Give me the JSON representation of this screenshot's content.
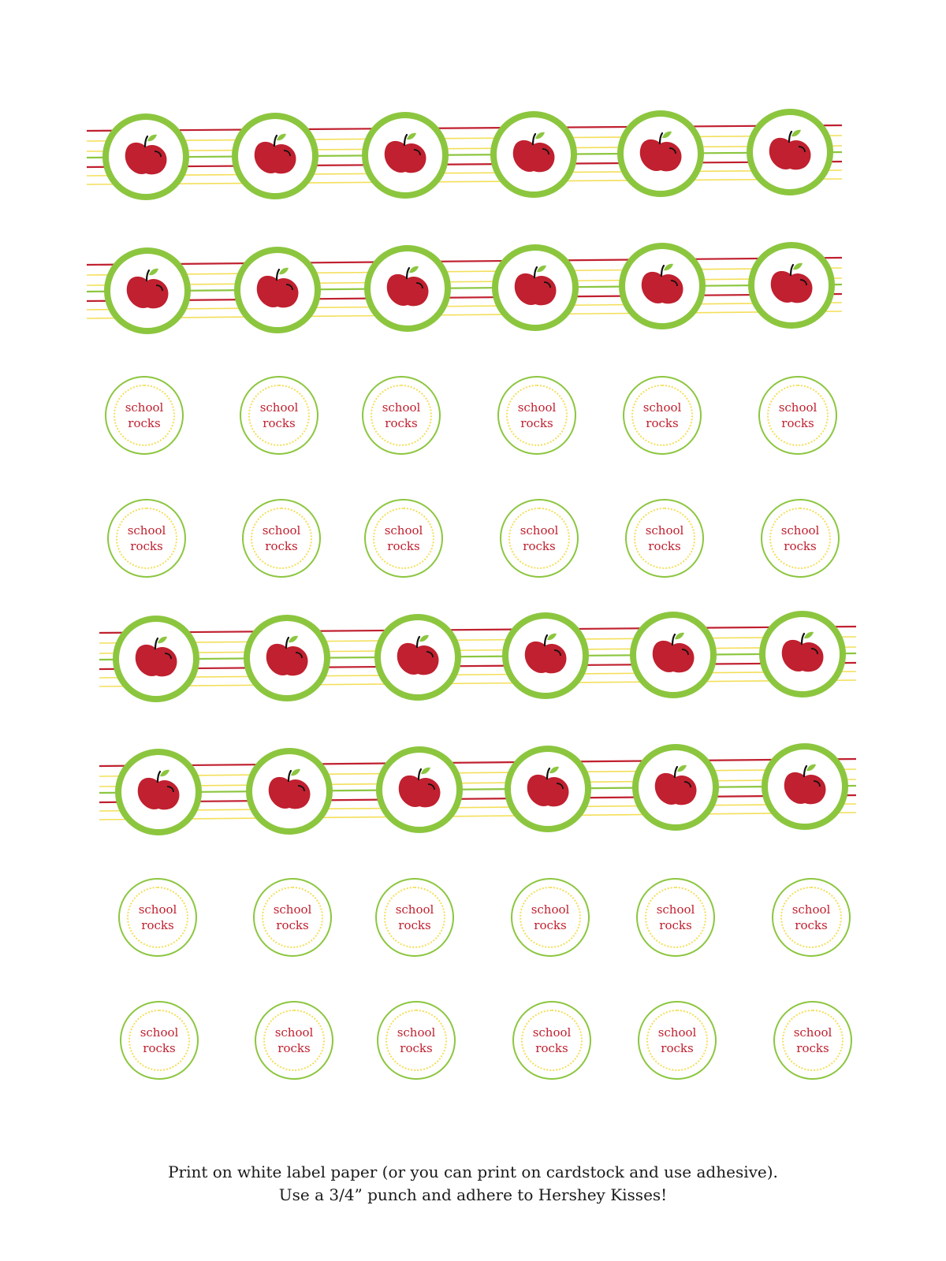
{
  "sheet": {
    "label_text_line1": "school",
    "label_text_line2": "rocks",
    "apple_label_icon": "apple-icon",
    "colors": {
      "ring_green": "#8cc63f",
      "apple_red": "#c0202f",
      "leaf_green": "#8cc63f",
      "stripe_red": "#c0202f",
      "stripe_yellow": "#f3df5a",
      "dot_yellow": "#f3df5a",
      "text_red": "#c0202f"
    }
  },
  "instructions": {
    "line1": "Print on white label paper (or you can print on cardstock and use adhesive).",
    "line2": "Use a 3/4” punch and adhere to Hershey Kisses!"
  }
}
